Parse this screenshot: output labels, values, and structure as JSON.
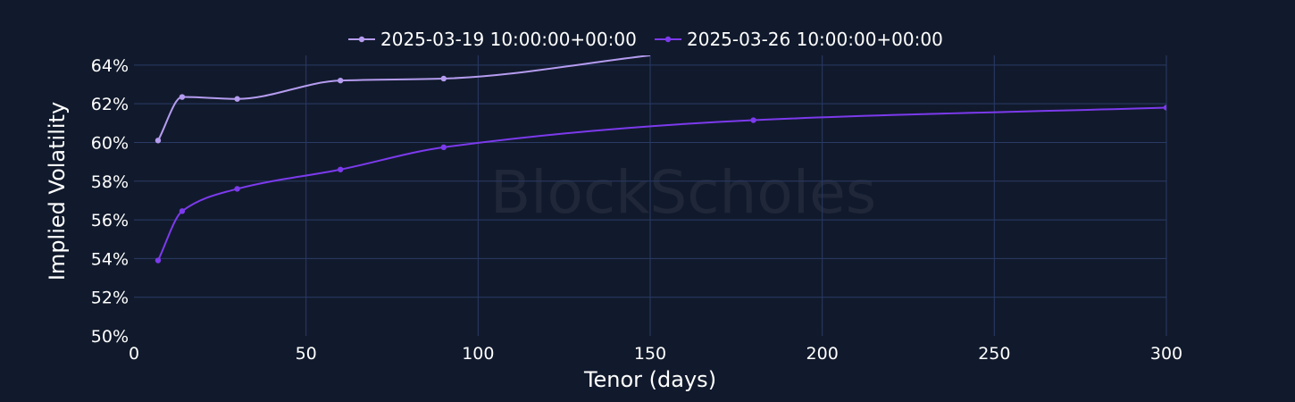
{
  "chart_data": {
    "type": "line",
    "xlabel": "Tenor (days)",
    "ylabel": "Implied Volatility",
    "xlim": [
      0,
      300
    ],
    "ylim": [
      50,
      64.5
    ],
    "x_ticks": [
      0,
      50,
      100,
      150,
      200,
      250,
      300
    ],
    "y_ticks": [
      50,
      52,
      54,
      56,
      58,
      60,
      62,
      64
    ],
    "y_tick_suffix": "%",
    "grid": true,
    "legend_position": "top-center",
    "watermark": "BlockScholes",
    "series": [
      {
        "name": "2025-03-19 10:00:00+00:00",
        "color": "#b59cf0",
        "x": [
          7,
          14,
          30,
          60,
          90,
          150
        ],
        "y": [
          60.1,
          62.35,
          62.25,
          63.2,
          63.3,
          64.5
        ]
      },
      {
        "name": "2025-03-26 10:00:00+00:00",
        "color": "#7c3aed",
        "x": [
          7,
          14,
          30,
          60,
          90,
          180,
          300
        ],
        "y": [
          53.9,
          56.45,
          57.6,
          58.6,
          59.75,
          61.15,
          61.8
        ]
      }
    ]
  }
}
